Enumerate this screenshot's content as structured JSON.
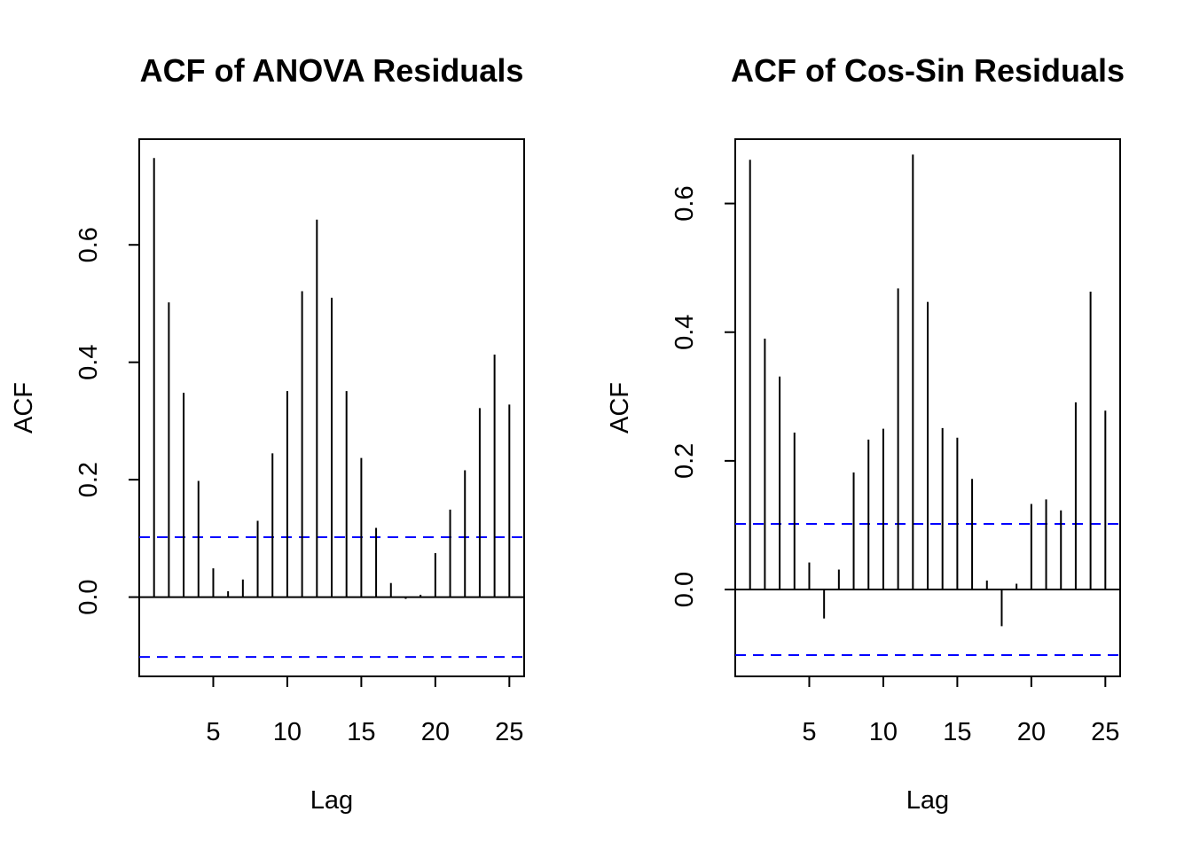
{
  "chart_data": [
    {
      "type": "bar",
      "title": "ACF of ANOVA Residuals",
      "xlabel": "Lag",
      "ylabel": "ACF",
      "xlim": [
        0,
        26
      ],
      "ylim": [
        -0.135,
        0.78
      ],
      "xticks": [
        "5",
        "10",
        "15",
        "20",
        "25"
      ],
      "yticks": [
        "0.0",
        "0.2",
        "0.4",
        "0.6"
      ],
      "grid": false,
      "legend": "none",
      "lags": [
        1,
        2,
        3,
        4,
        5,
        6,
        7,
        8,
        9,
        10,
        11,
        12,
        13,
        14,
        15,
        16,
        17,
        18,
        19,
        20,
        21,
        22,
        23,
        24,
        25
      ],
      "values": [
        0.748,
        0.502,
        0.348,
        0.198,
        0.049,
        0.01,
        0.03,
        0.13,
        0.245,
        0.351,
        0.521,
        0.643,
        0.51,
        0.351,
        0.237,
        0.118,
        0.024,
        -0.003,
        0.004,
        0.075,
        0.149,
        0.216,
        0.322,
        0.413,
        0.328
      ],
      "confidence_bound": 0.102,
      "colors": {
        "bars": "#000000",
        "bounds": "#0000ff"
      }
    },
    {
      "type": "bar",
      "title": "ACF of Cos-Sin Residuals",
      "xlabel": "Lag",
      "ylabel": "ACF",
      "xlim": [
        0,
        26
      ],
      "ylim": [
        -0.135,
        0.7
      ],
      "xticks": [
        "5",
        "10",
        "15",
        "20",
        "25"
      ],
      "yticks": [
        "0.0",
        "0.2",
        "0.4",
        "0.6"
      ],
      "grid": false,
      "legend": "none",
      "lags": [
        1,
        2,
        3,
        4,
        5,
        6,
        7,
        8,
        9,
        10,
        11,
        12,
        13,
        14,
        15,
        16,
        17,
        18,
        19,
        20,
        21,
        22,
        23,
        24,
        25
      ],
      "values": [
        0.668,
        0.39,
        0.331,
        0.244,
        0.042,
        -0.045,
        0.031,
        0.182,
        0.233,
        0.25,
        0.468,
        0.676,
        0.447,
        0.251,
        0.236,
        0.172,
        0.014,
        -0.057,
        0.009,
        0.133,
        0.14,
        0.123,
        0.291,
        0.463,
        0.278
      ],
      "confidence_bound": 0.102,
      "colors": {
        "bars": "#000000",
        "bounds": "#0000ff"
      }
    }
  ]
}
